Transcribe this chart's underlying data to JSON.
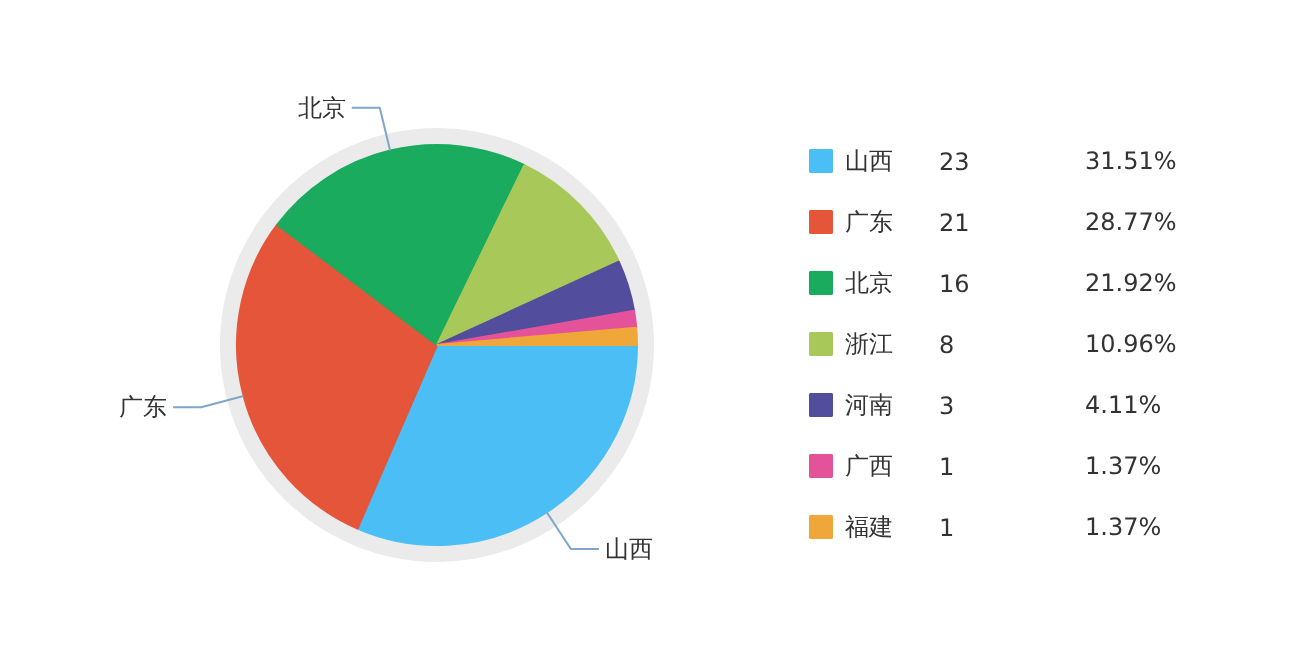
{
  "chart_data": {
    "type": "pie",
    "categories": [
      "山西",
      "广东",
      "北京",
      "浙江",
      "河南",
      "广西",
      "福建"
    ],
    "values": [
      31.51,
      28.77,
      21.92,
      10.96,
      4.11,
      1.37,
      1.37
    ],
    "colors": [
      "#4bbff5",
      "#e4553a",
      "#1aab5e",
      "#a8c85a",
      "#524d9c",
      "#e4539a",
      "#f0a73a"
    ],
    "value_labels": [
      "31.51%",
      "28.77%",
      "21.92%",
      "10.96%",
      "4.11%",
      "1.37%",
      "1.37%"
    ],
    "annotations": [
      {
        "text": "北京",
        "x": "北京"
      },
      {
        "text": "广东",
        "x": "广东"
      },
      {
        "text": "山西",
        "x": "山西"
      },
      "23",
      "21",
      "16",
      "8",
      "3",
      "1",
      "1"
    ],
    "legend": "right"
  }
}
